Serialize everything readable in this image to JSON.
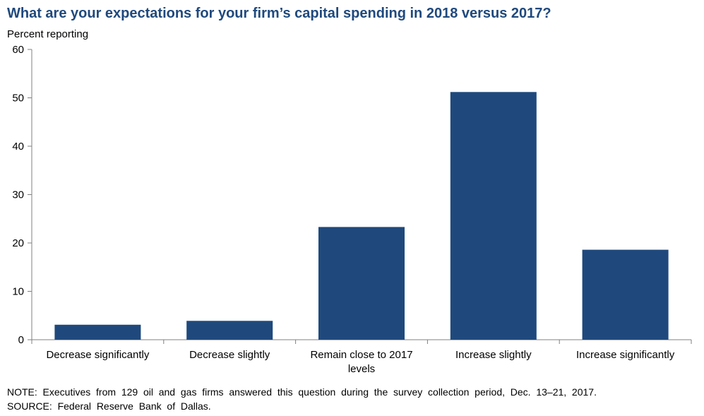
{
  "chart_data": {
    "type": "bar",
    "title": "What are your expectations for your firm’s capital spending in 2018 versus 2017?",
    "ylabel": "Percent reporting",
    "xlabel": "",
    "categories": [
      "Decrease significantly",
      "Decrease slightly",
      "Remain close to 2017 levels",
      "Increase slightly",
      "Increase significantly"
    ],
    "category_lines": [
      [
        "Decrease significantly"
      ],
      [
        "Decrease slightly"
      ],
      [
        "Remain close to 2017",
        "levels"
      ],
      [
        "Increase slightly"
      ],
      [
        "Increase significantly"
      ]
    ],
    "values": [
      3.1,
      3.9,
      23.3,
      51.2,
      18.6
    ],
    "ylim": [
      0,
      60
    ],
    "yticks": [
      "0",
      "10",
      "20",
      "30",
      "40",
      "50",
      "60"
    ],
    "grid": false,
    "bar_color": "#1f497d"
  },
  "footer": {
    "note": "NOTE:  Executives  from  129  oil  and  gas  firms  answered  this  question  during  the  survey  collection  period,  Dec.  13–21,  2017.",
    "source": "SOURCE:  Federal  Reserve  Bank  of  Dallas."
  }
}
